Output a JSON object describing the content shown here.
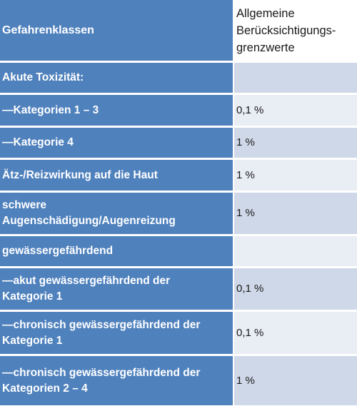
{
  "table": {
    "header": {
      "col1": "Gefahrenklassen",
      "col2_lines": [
        "Allgemeine",
        "Berücksichtigungs-",
        "grenzwerte"
      ]
    },
    "rows": [
      {
        "label_lines": [
          "Akute Toxizität:"
        ],
        "value": ""
      },
      {
        "label_lines": [
          "—Kategorien 1 – 3"
        ],
        "value": "0,1 %"
      },
      {
        "label_lines": [
          "—Kategorie 4"
        ],
        "value": "1 %"
      },
      {
        "label_lines": [
          "Ätz-/Reizwirkung auf die Haut"
        ],
        "value": "1 %"
      },
      {
        "label_lines": [
          "schwere",
          "Augenschädigung/Augenreizung"
        ],
        "value": "1 %"
      },
      {
        "label_lines": [
          "gewässergefährdend"
        ],
        "value": ""
      },
      {
        "label_lines": [
          "—akut gewässergefährdend der",
          "Kategorie 1"
        ],
        "value": "0,1 %"
      },
      {
        "label_lines": [
          "—chronisch gewässergefährdend der",
          "Kategorie 1"
        ],
        "value": "0,1 %"
      },
      {
        "label_lines": [
          "—chronisch gewässergefährdend der",
          "Kategorien 2 – 4"
        ],
        "value": "1 %"
      }
    ]
  }
}
